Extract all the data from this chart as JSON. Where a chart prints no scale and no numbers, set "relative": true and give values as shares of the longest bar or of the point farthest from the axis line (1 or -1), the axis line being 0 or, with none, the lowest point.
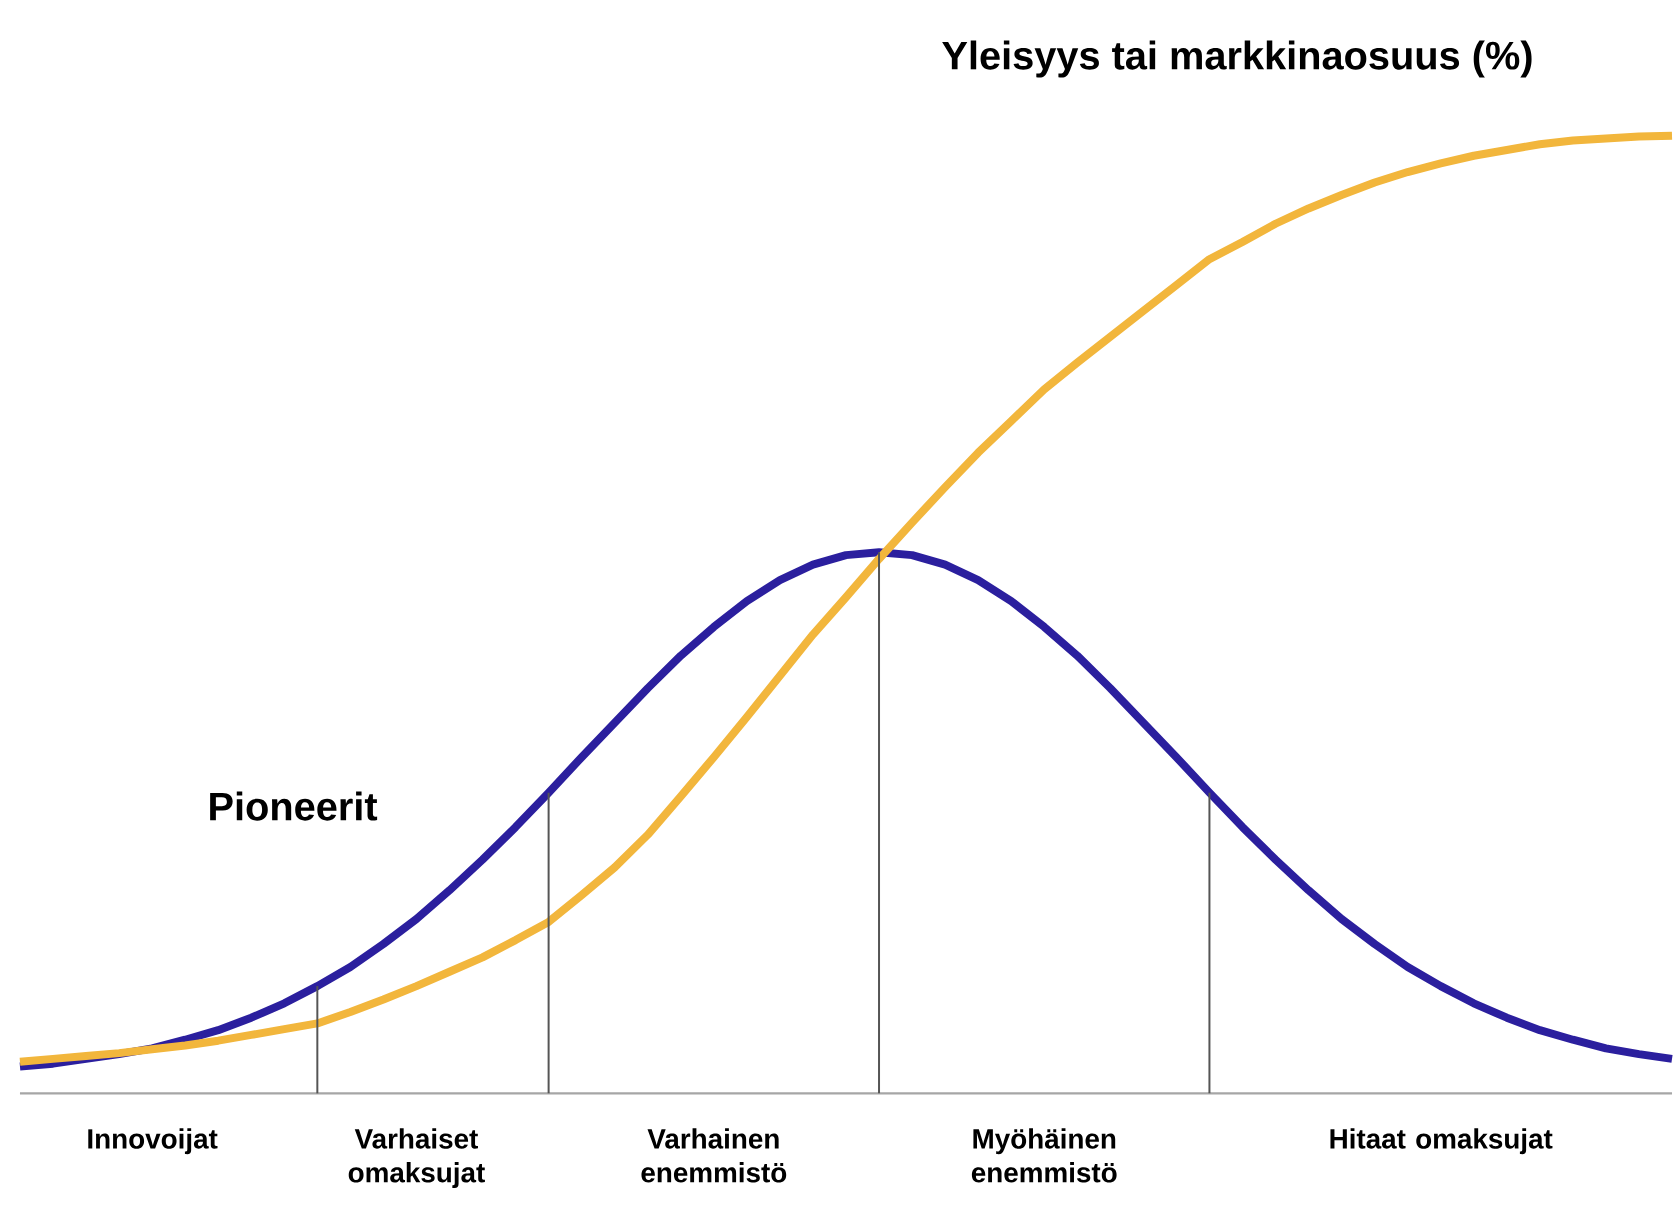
{
  "chart_data": {
    "type": "line",
    "relative": true,
    "marker": "none",
    "line_style": "solid",
    "categories": [
      null,
      null,
      null,
      null,
      "Innovoijat",
      null,
      null,
      null,
      null,
      null,
      null,
      null,
      "Varhaiset omaksujat",
      null,
      null,
      null,
      null,
      null,
      null,
      null,
      null,
      "Varhainen enemmistö",
      null,
      null,
      null,
      null,
      null,
      null,
      null,
      null,
      null,
      "Myöhäinen enemmistö",
      null,
      null,
      null,
      null,
      null,
      null,
      null,
      null,
      null,
      null,
      null,
      "Hitaat omaksujat",
      null,
      null,
      null,
      null,
      null,
      null,
      null
    ],
    "series": [
      {
        "name": "Pioneerit",
        "color": "#2b1f9e",
        "values": [
          0.028,
          0.031,
          0.036,
          0.041,
          0.047,
          0.056,
          0.066,
          0.079,
          0.094,
          0.112,
          0.132,
          0.156,
          0.182,
          0.212,
          0.244,
          0.278,
          0.314,
          0.351,
          0.387,
          0.423,
          0.457,
          0.487,
          0.514,
          0.536,
          0.552,
          0.562,
          0.565,
          0.562,
          0.552,
          0.536,
          0.514,
          0.487,
          0.457,
          0.423,
          0.387,
          0.351,
          0.314,
          0.278,
          0.244,
          0.212,
          0.182,
          0.156,
          0.132,
          0.112,
          0.094,
          0.079,
          0.066,
          0.056,
          0.047,
          0.041,
          0.036
        ]
      },
      {
        "name": "Yleisyys tai markkinaosuus (%)",
        "color": "#f2b63c",
        "values": [
          0.033,
          0.036,
          0.039,
          0.042,
          0.046,
          0.05,
          0.055,
          0.061,
          0.067,
          0.073,
          0.085,
          0.098,
          0.112,
          0.127,
          0.142,
          0.16,
          0.179,
          0.207,
          0.236,
          0.27,
          0.31,
          0.351,
          0.393,
          0.436,
          0.479,
          0.518,
          0.558,
          0.596,
          0.633,
          0.669,
          0.702,
          0.735,
          0.763,
          0.79,
          0.817,
          0.844,
          0.871,
          0.889,
          0.908,
          0.924,
          0.938,
          0.951,
          0.962,
          0.971,
          0.979,
          0.985,
          0.991,
          0.995,
          0.997,
          0.999,
          1.0
        ]
      },
      {
        "type": "bar",
        "color": "#555555",
        "values": [
          null,
          null,
          null,
          null,
          null,
          null,
          null,
          null,
          null,
          0.112,
          null,
          null,
          null,
          null,
          null,
          null,
          0.314,
          null,
          null,
          null,
          null,
          null,
          null,
          null,
          null,
          null,
          0.565,
          null,
          null,
          null,
          null,
          null,
          null,
          null,
          null,
          null,
          0.314,
          null,
          null,
          null,
          null,
          null,
          null,
          null,
          null,
          null,
          null,
          null,
          null,
          null,
          null
        ]
      }
    ]
  }
}
